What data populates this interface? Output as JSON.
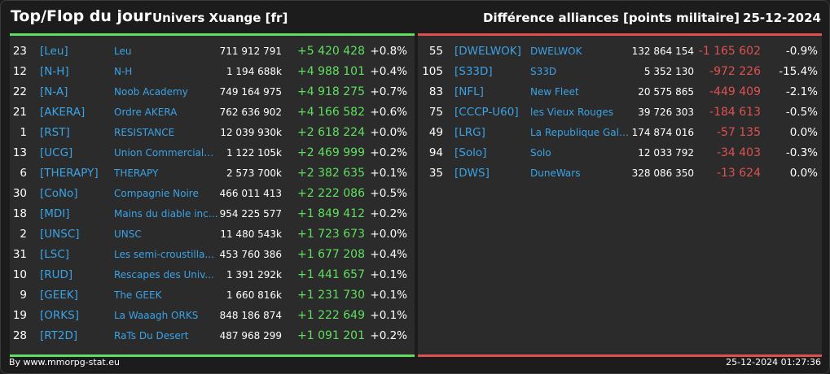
{
  "header": {
    "title": "Top/Flop du jour",
    "subtitle": "Univers Xuange [fr]",
    "right_title": "Différence alliances [points militaire]",
    "date": "25-12-2024"
  },
  "colors": {
    "positive": "#5ee05e",
    "negative": "#e05050",
    "tag": "#3aa3e6"
  },
  "top": [
    {
      "rank": "23",
      "tag": "[Leu]",
      "name": "Leu",
      "points": "711 912 791",
      "diff": "+5 420 428",
      "pct": "+0.8%"
    },
    {
      "rank": "12",
      "tag": "[N-H]",
      "name": "N-H",
      "points": "1 194 688k",
      "diff": "+4 988 101",
      "pct": "+0.4%"
    },
    {
      "rank": "22",
      "tag": "[N-A]",
      "name": "Noob Academy",
      "points": "749 164 975",
      "diff": "+4 918 275",
      "pct": "+0.7%"
    },
    {
      "rank": "21",
      "tag": "[AKERA]",
      "name": "Ordre AKERA",
      "points": "762 636 902",
      "diff": "+4 166 582",
      "pct": "+0.6%"
    },
    {
      "rank": "1",
      "tag": "[RST]",
      "name": "RESISTANCE",
      "points": "12 039 930k",
      "diff": "+2 618 224",
      "pct": "+0.0%"
    },
    {
      "rank": "13",
      "tag": "[UCG]",
      "name": "Union Commerciale...",
      "points": "1 122 105k",
      "diff": "+2 469 999",
      "pct": "+0.2%"
    },
    {
      "rank": "6",
      "tag": "[THERAPY]",
      "name": "THERAPY",
      "points": "2 573 700k",
      "diff": "+2 382 635",
      "pct": "+0.1%"
    },
    {
      "rank": "30",
      "tag": "[CoNo]",
      "name": "Compagnie Noire",
      "points": "466 011 413",
      "diff": "+2 222 086",
      "pct": "+0.5%"
    },
    {
      "rank": "18",
      "tag": "[MDI]",
      "name": "Mains du diable inco...",
      "points": "954 225 577",
      "diff": "+1 849 412",
      "pct": "+0.2%"
    },
    {
      "rank": "2",
      "tag": "[UNSC]",
      "name": "UNSC",
      "points": "11 480 543k",
      "diff": "+1 723 673",
      "pct": "+0.0%"
    },
    {
      "rank": "31",
      "tag": "[LSC]",
      "name": "Les semi-croustilla...",
      "points": "453 760 386",
      "diff": "+1 677 208",
      "pct": "+0.4%"
    },
    {
      "rank": "10",
      "tag": "[RUD]",
      "name": "Rescapes des Univ...",
      "points": "1 391 292k",
      "diff": "+1 441 657",
      "pct": "+0.1%"
    },
    {
      "rank": "9",
      "tag": "[GEEK]",
      "name": "The GEEK",
      "points": "1 660 816k",
      "diff": "+1 231 730",
      "pct": "+0.1%"
    },
    {
      "rank": "19",
      "tag": "[ORKS]",
      "name": "La Waaagh ORKS",
      "points": "848 186 874",
      "diff": "+1 222 649",
      "pct": "+0.1%"
    },
    {
      "rank": "28",
      "tag": "[RT2D]",
      "name": "RaTs Du Desert",
      "points": "487 968 299",
      "diff": "+1 091 201",
      "pct": "+0.2%"
    }
  ],
  "flop": [
    {
      "rank": "55",
      "tag": "[DWELWOK]",
      "name": "DWELWOK",
      "points": "132 864 154",
      "diff": "-1 165 602",
      "pct": "-0.9%"
    },
    {
      "rank": "105",
      "tag": "[S33D]",
      "name": "S33D",
      "points": "5 352 130",
      "diff": "-972 226",
      "pct": "-15.4%"
    },
    {
      "rank": "83",
      "tag": "[NFL]",
      "name": "New Fleet",
      "points": "20 575 865",
      "diff": "-449 409",
      "pct": "-2.1%"
    },
    {
      "rank": "75",
      "tag": "[CCCP-U60]",
      "name": "les Vieux Rouges",
      "points": "39 726 303",
      "diff": "-184 613",
      "pct": "-0.5%"
    },
    {
      "rank": "49",
      "tag": "[LRG]",
      "name": "La Republique Gala...",
      "points": "174 874 016",
      "diff": "-57 135",
      "pct": "0.0%"
    },
    {
      "rank": "94",
      "tag": "[Solo]",
      "name": "Solo",
      "points": "12 033 792",
      "diff": "-34 403",
      "pct": "-0.3%"
    },
    {
      "rank": "35",
      "tag": "[DWS]",
      "name": "DuneWars",
      "points": "328 086 350",
      "diff": "-13 624",
      "pct": "0.0%"
    }
  ],
  "footer": {
    "credit": "By www.mmorpg-stat.eu",
    "timestamp": "25-12-2024 01:27:36"
  }
}
